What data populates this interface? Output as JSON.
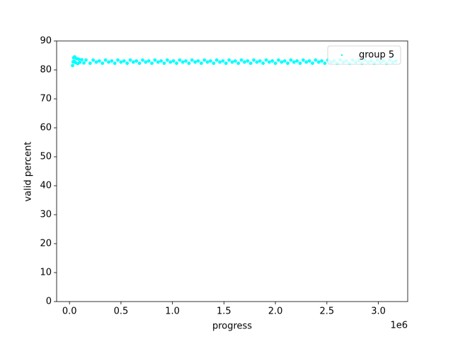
{
  "chart_data": {
    "type": "scatter",
    "xlabel": "progress",
    "ylabel": "valid percent",
    "x_offset_label": "1e6",
    "xlim": [
      -125000,
      3285000
    ],
    "ylim": [
      0,
      90
    ],
    "xticks": [
      {
        "value": 0,
        "label": "0.0"
      },
      {
        "value": 500000,
        "label": "0.5"
      },
      {
        "value": 1000000,
        "label": "1.0"
      },
      {
        "value": 1500000,
        "label": "1.5"
      },
      {
        "value": 2000000,
        "label": "2.0"
      },
      {
        "value": 2500000,
        "label": "2.5"
      },
      {
        "value": 3000000,
        "label": "3.0"
      }
    ],
    "yticks": [
      0,
      10,
      20,
      30,
      40,
      50,
      60,
      70,
      80,
      90
    ],
    "legend": "upper right",
    "series": [
      {
        "name": "group 5",
        "color": "#00ffff",
        "x": [
          30000,
          35000,
          40000,
          45000,
          50000,
          60000,
          70000,
          80000,
          90000,
          100000,
          120000,
          140000,
          160000,
          200000,
          230000,
          260000,
          290000,
          320000,
          350000,
          380000,
          410000,
          440000,
          470000,
          500000,
          530000,
          560000,
          590000,
          620000,
          650000,
          680000,
          710000,
          740000,
          770000,
          800000,
          830000,
          860000,
          890000,
          920000,
          950000,
          980000,
          1010000,
          1040000,
          1070000,
          1100000,
          1130000,
          1160000,
          1190000,
          1220000,
          1250000,
          1280000,
          1310000,
          1340000,
          1370000,
          1400000,
          1430000,
          1460000,
          1490000,
          1520000,
          1550000,
          1580000,
          1610000,
          1640000,
          1670000,
          1700000,
          1730000,
          1760000,
          1790000,
          1820000,
          1850000,
          1880000,
          1910000,
          1940000,
          1970000,
          2000000,
          2030000,
          2060000,
          2090000,
          2120000,
          2150000,
          2180000,
          2210000,
          2240000,
          2270000,
          2300000,
          2330000,
          2360000,
          2390000,
          2420000,
          2450000,
          2480000,
          2510000,
          2540000,
          2570000,
          2600000,
          2630000,
          2660000,
          2690000,
          2720000,
          2750000,
          2780000,
          2810000,
          2840000,
          2870000,
          2900000,
          2930000,
          2960000,
          2990000,
          3020000,
          3050000,
          3080000,
          3110000,
          3140000,
          3170000
        ],
        "y": [
          81.5,
          82.8,
          84.2,
          83.0,
          84.5,
          82.5,
          83.9,
          82.2,
          83.7,
          82.6,
          83.5,
          82.4,
          83.4,
          82.3,
          83.4,
          82.7,
          83.1,
          82.3,
          83.4,
          82.7,
          83.1,
          82.3,
          83.4,
          82.7,
          83.1,
          82.3,
          83.4,
          82.7,
          83.1,
          82.3,
          83.4,
          82.7,
          83.1,
          82.3,
          83.4,
          82.7,
          83.1,
          82.3,
          83.4,
          82.7,
          83.1,
          82.3,
          83.4,
          82.7,
          83.1,
          82.3,
          83.4,
          82.7,
          83.1,
          82.3,
          83.4,
          82.7,
          83.1,
          82.3,
          83.4,
          82.7,
          83.1,
          82.3,
          83.4,
          82.7,
          83.1,
          82.3,
          83.4,
          82.7,
          83.1,
          82.3,
          83.4,
          82.7,
          83.1,
          82.3,
          83.4,
          82.7,
          83.1,
          82.3,
          83.4,
          82.7,
          83.1,
          82.3,
          83.4,
          82.7,
          83.1,
          82.3,
          83.4,
          82.7,
          83.1,
          82.3,
          83.4,
          82.7,
          83.1,
          82.3,
          83.4,
          82.7,
          83.1,
          82.3,
          83.4,
          82.7,
          83.1,
          82.3,
          83.4,
          82.7,
          83.1,
          82.3,
          83.4,
          82.7,
          83.1,
          82.3,
          83.4,
          82.7,
          83.1,
          82.3,
          83.4,
          82.7,
          83.1
        ]
      }
    ]
  }
}
